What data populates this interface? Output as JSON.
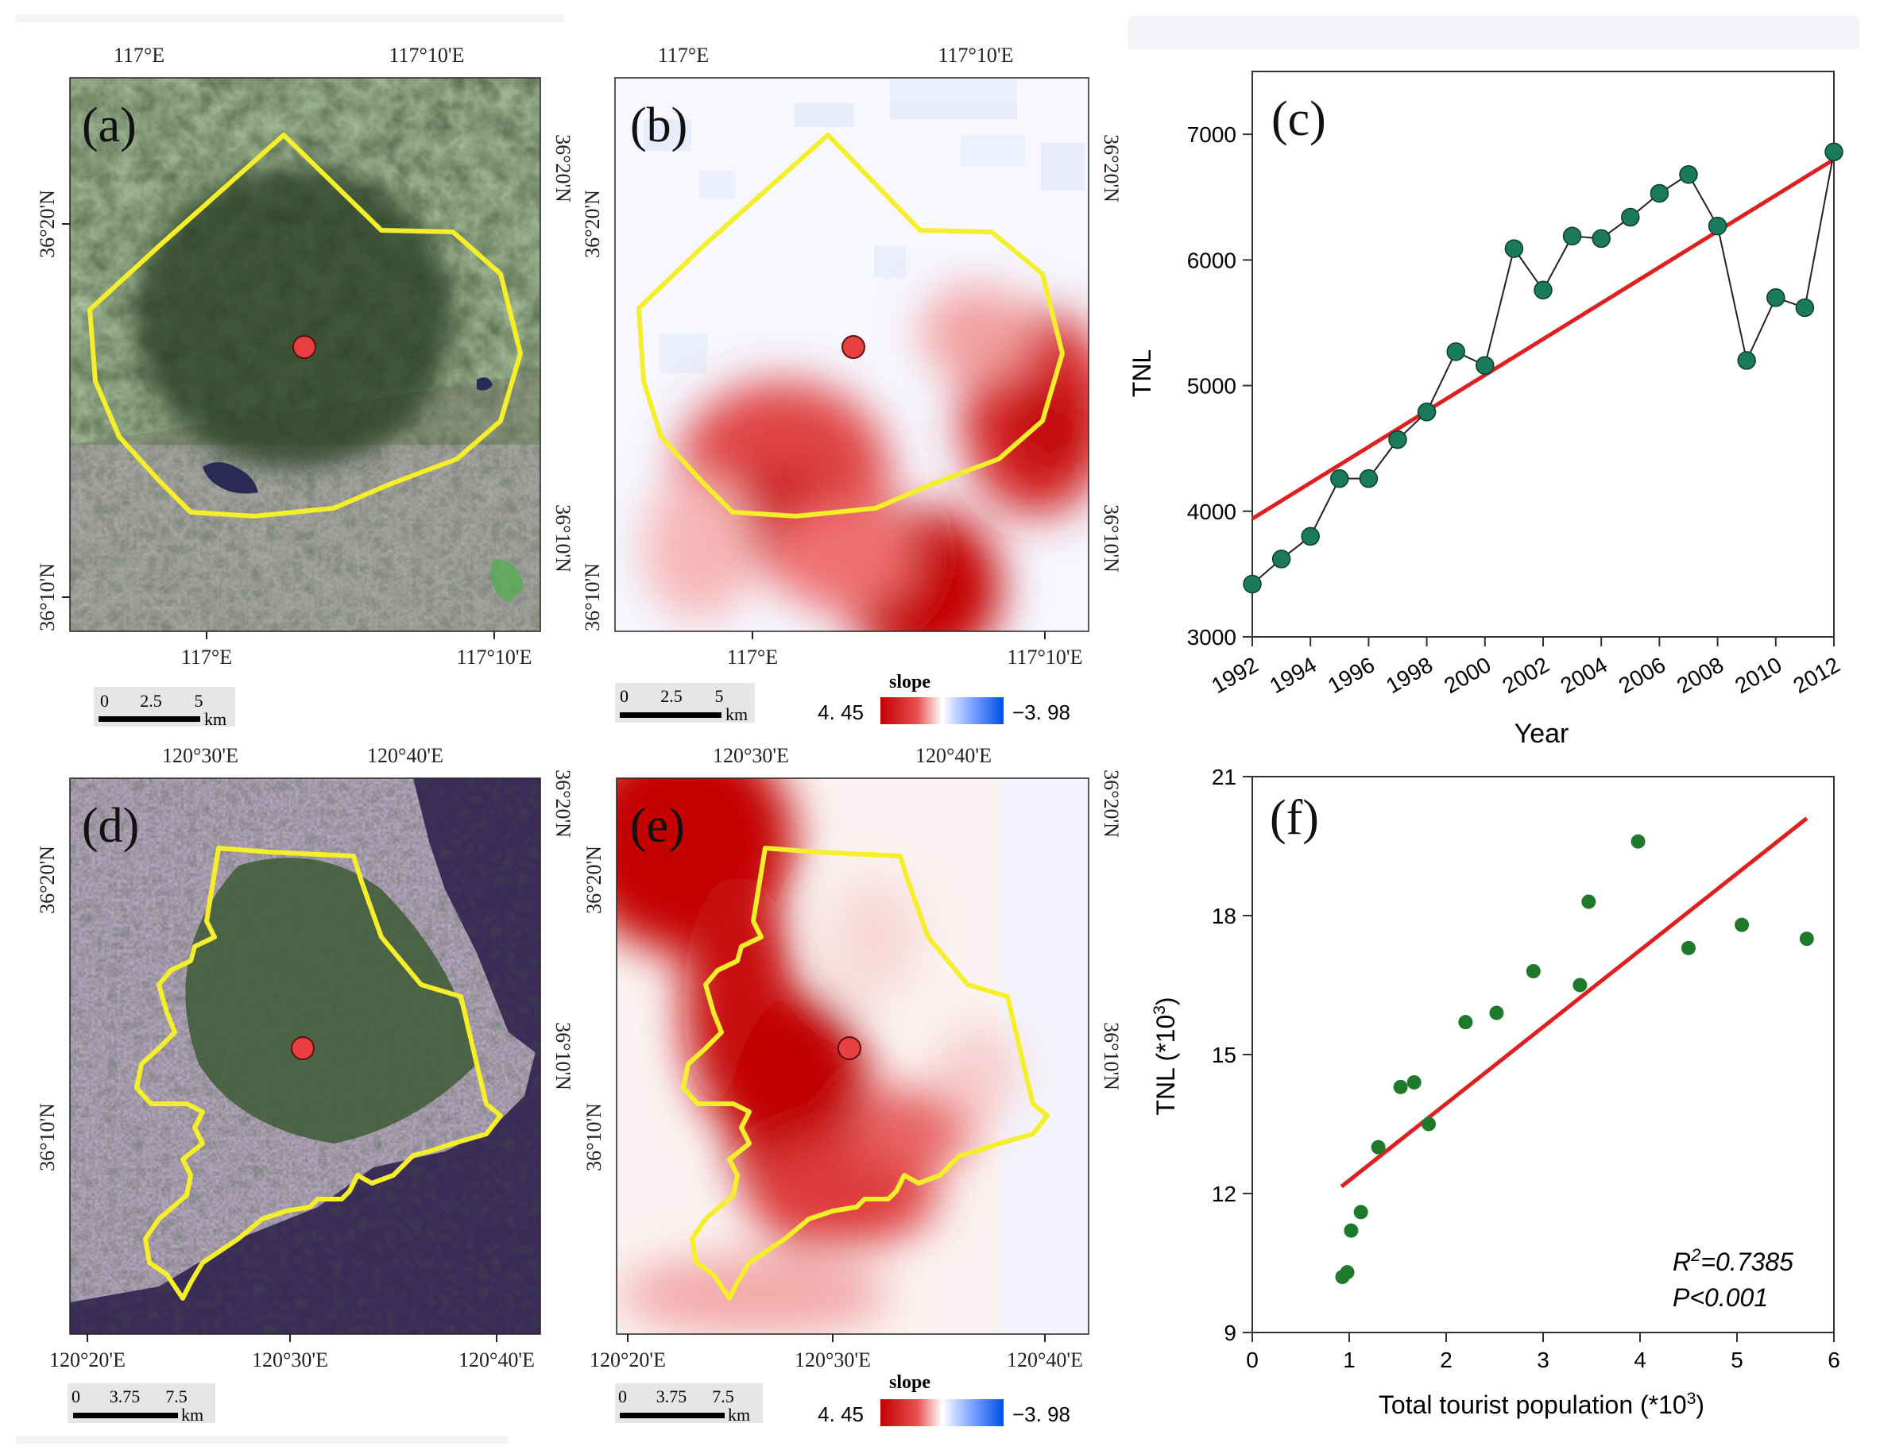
{
  "panels": {
    "a": {
      "label": "(a)",
      "top_ticks": [
        "117°E",
        "117°10'E"
      ],
      "bottom_ticks": [
        "117°E",
        "117°10'E"
      ],
      "left_ticks": [
        "36°20'N",
        "36°10'N"
      ],
      "right_ticks": [
        "36°20'N",
        "36°10'N"
      ],
      "scalebar": {
        "labels": [
          "0",
          "2.5",
          "5"
        ],
        "unit": "km"
      }
    },
    "b": {
      "label": "(b)",
      "top_ticks": [
        "117°E",
        "117°10'E"
      ],
      "bottom_ticks": [
        "117°E",
        "117°10'E"
      ],
      "left_ticks": [
        "36°20'N",
        "36°10'N"
      ],
      "right_ticks": [
        "36°20'N",
        "36°10'N"
      ],
      "scalebar": {
        "labels": [
          "0",
          "2.5",
          "5"
        ],
        "unit": "km"
      },
      "legend": {
        "title": "slope",
        "max": "4. 45",
        "min": "−3. 98"
      }
    },
    "d": {
      "label": "(d)",
      "top_ticks": [
        "120°30'E",
        "120°40'E"
      ],
      "bottom_ticks": [
        "120°20'E",
        "120°30'E",
        "120°40'E"
      ],
      "left_ticks": [
        "36°20'N",
        "36°10'N"
      ],
      "right_ticks": [
        "36°20'N",
        "36°10'N"
      ],
      "scalebar": {
        "labels": [
          "0",
          "3.75",
          "7.5"
        ],
        "unit": "km"
      }
    },
    "e": {
      "label": "(e)",
      "top_ticks": [
        "120°30'E",
        "120°40'E"
      ],
      "bottom_ticks": [
        "120°20'E",
        "120°30'E",
        "120°40'E"
      ],
      "left_ticks": [
        "36°20'N",
        "36°10'N"
      ],
      "right_ticks": [
        "36°20'N",
        "36°10'N"
      ],
      "scalebar": {
        "labels": [
          "0",
          "3.75",
          "7.5"
        ],
        "unit": "km"
      },
      "legend": {
        "title": "slope",
        "max": "4. 45",
        "min": "−3. 98"
      }
    }
  },
  "colors": {
    "boundary": "#f5ee2a",
    "site_marker": "#e84040",
    "trend_line": "#e02020",
    "series_point": "#1a7a5c",
    "scatter_point": "#1e7a2a",
    "slope_high": "#c40000",
    "slope_low": "#0050e6"
  },
  "chart_data": [
    {
      "type": "line",
      "panel_label": "(c)",
      "xlabel": "Year",
      "ylabel": "TNL",
      "x": [
        1992,
        1993,
        1994,
        1995,
        1996,
        1997,
        1998,
        1999,
        2000,
        2001,
        2002,
        2003,
        2004,
        2005,
        2006,
        2007,
        2008,
        2009,
        2010,
        2011,
        2012
      ],
      "series": [
        {
          "values": [
            3420,
            3620,
            3800,
            4260,
            4260,
            4570,
            4790,
            5270,
            5160,
            6090,
            5760,
            6190,
            6170,
            6340,
            6530,
            6680,
            6270,
            5200,
            5700,
            5620,
            6860
          ]
        }
      ],
      "trend": {
        "x": [
          1992,
          2012
        ],
        "y": [
          3940,
          6800
        ]
      },
      "xticks": [
        "1992",
        "1994",
        "1996",
        "1998",
        "2000",
        "2002",
        "2004",
        "2006",
        "2008",
        "2010",
        "2012"
      ],
      "yticks": [
        "3000",
        "4000",
        "5000",
        "6000",
        "7000"
      ],
      "xlim": [
        1992,
        2012
      ],
      "ylim": [
        3000,
        7500
      ]
    },
    {
      "type": "scatter",
      "panel_label": "(f)",
      "xlabel": "Total tourist population (*10",
      "xlabel_sup": "3",
      "xlabel_end": ")",
      "ylabel": "TNL (*10",
      "ylabel_sup": "3",
      "ylabel_end": ")",
      "points": [
        [
          0.93,
          10.2
        ],
        [
          0.98,
          10.3
        ],
        [
          1.02,
          11.2
        ],
        [
          1.12,
          11.6
        ],
        [
          1.3,
          13.0
        ],
        [
          1.53,
          14.3
        ],
        [
          1.67,
          14.4
        ],
        [
          1.82,
          13.5
        ],
        [
          2.2,
          15.7
        ],
        [
          2.52,
          15.9
        ],
        [
          2.9,
          16.8
        ],
        [
          3.38,
          16.5
        ],
        [
          3.47,
          18.3
        ],
        [
          3.98,
          19.6
        ],
        [
          4.5,
          17.3
        ],
        [
          5.05,
          17.8
        ],
        [
          5.72,
          17.5
        ]
      ],
      "trend": {
        "x": [
          0.92,
          5.72
        ],
        "y": [
          12.15,
          20.1
        ]
      },
      "annotation": {
        "r2_prefix": "R",
        "r2_sup": "2",
        "r2_value": "=0.7385",
        "p": "P<0.001"
      },
      "xticks": [
        "0",
        "1",
        "2",
        "3",
        "4",
        "5",
        "6"
      ],
      "yticks": [
        "9",
        "12",
        "15",
        "18",
        "21"
      ],
      "xlim": [
        0,
        6
      ],
      "ylim": [
        9,
        21
      ]
    }
  ]
}
